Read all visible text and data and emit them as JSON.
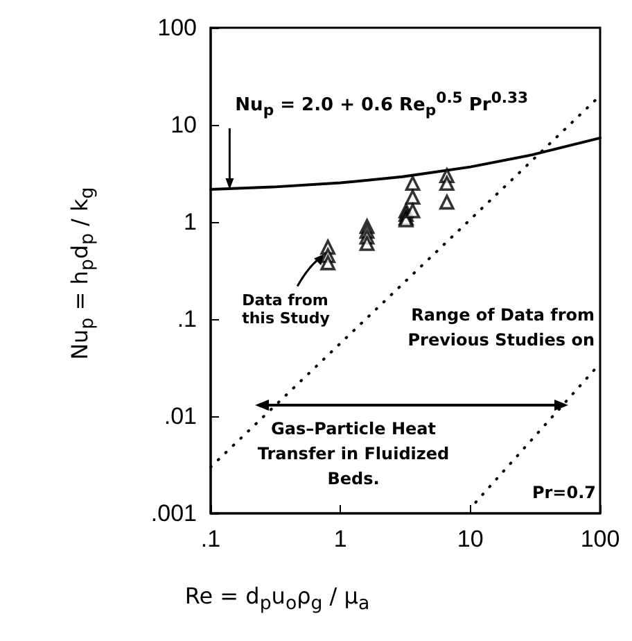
{
  "chart_data": {
    "type": "scatter",
    "xlabel": "Re = d$_{p}$u$_{o}$ρ$_{g}$ / μ$_{a}$",
    "ylabel": "Nu$_{p}$ = h$_{p}$d$_{p}$ / k$_{g}$",
    "log": "xy",
    "grid": false,
    "xlim": [
      0.1,
      100
    ],
    "xticks": [
      {
        "value": 0.1,
        "label": ".1"
      },
      1,
      10,
      100
    ],
    "ylim": [
      0.001,
      100
    ],
    "yticks": [
      {
        "value": 0.001,
        "label": ".001"
      },
      {
        "value": 0.01,
        "label": ".01"
      },
      {
        "value": 0.1,
        "label": ".1"
      },
      1,
      10,
      100
    ],
    "series": [
      {
        "marker": "triangle",
        "color": "#000000",
        "x": [
          0.8,
          0.8,
          0.8,
          1.6,
          1.6,
          1.6,
          1.6,
          3.2,
          3.2,
          3.2,
          3.2,
          3.6,
          3.6,
          3.6,
          6.6,
          6.6,
          6.6
        ],
        "values": [
          0.55,
          0.45,
          0.38,
          0.9,
          0.8,
          0.7,
          0.6,
          1.3,
          1.2,
          1.1,
          1.05,
          2.5,
          1.8,
          1.3,
          3.0,
          2.5,
          1.6
        ]
      },
      {
        "type": "line",
        "marker": "none",
        "line_style": "solid",
        "color": "#000000",
        "x": [
          0.1,
          0.3,
          1,
          3,
          10,
          30,
          100
        ],
        "values": [
          2.17,
          2.29,
          2.53,
          2.92,
          3.69,
          4.92,
          7.33
        ]
      },
      {
        "type": "line",
        "marker": "none",
        "line_style": "dotted",
        "color": "#000000",
        "x": [
          0.1,
          100
        ],
        "values": [
          0.003,
          20
        ]
      },
      {
        "type": "line",
        "marker": "none",
        "line_style": "dotted",
        "color": "#000000",
        "x": [
          11,
          100
        ],
        "values": [
          0.0013,
          0.035
        ]
      }
    ],
    "annotations": [
      {
        "text": "Nu$_{p}$ = 2.0 + 0.6 Re$_{p}$$^{0.5}$ Pr$^{0.33}$",
        "x": 0.14,
        "y": 2.17
      },
      {
        "text": "Data from this Study",
        "x": 0.8,
        "y": 0.45
      },
      "Range of Data from Previous Studies on",
      "Gas–Particle Heat Transfer in Fluidized Beds.",
      "Pr=0.7"
    ]
  }
}
